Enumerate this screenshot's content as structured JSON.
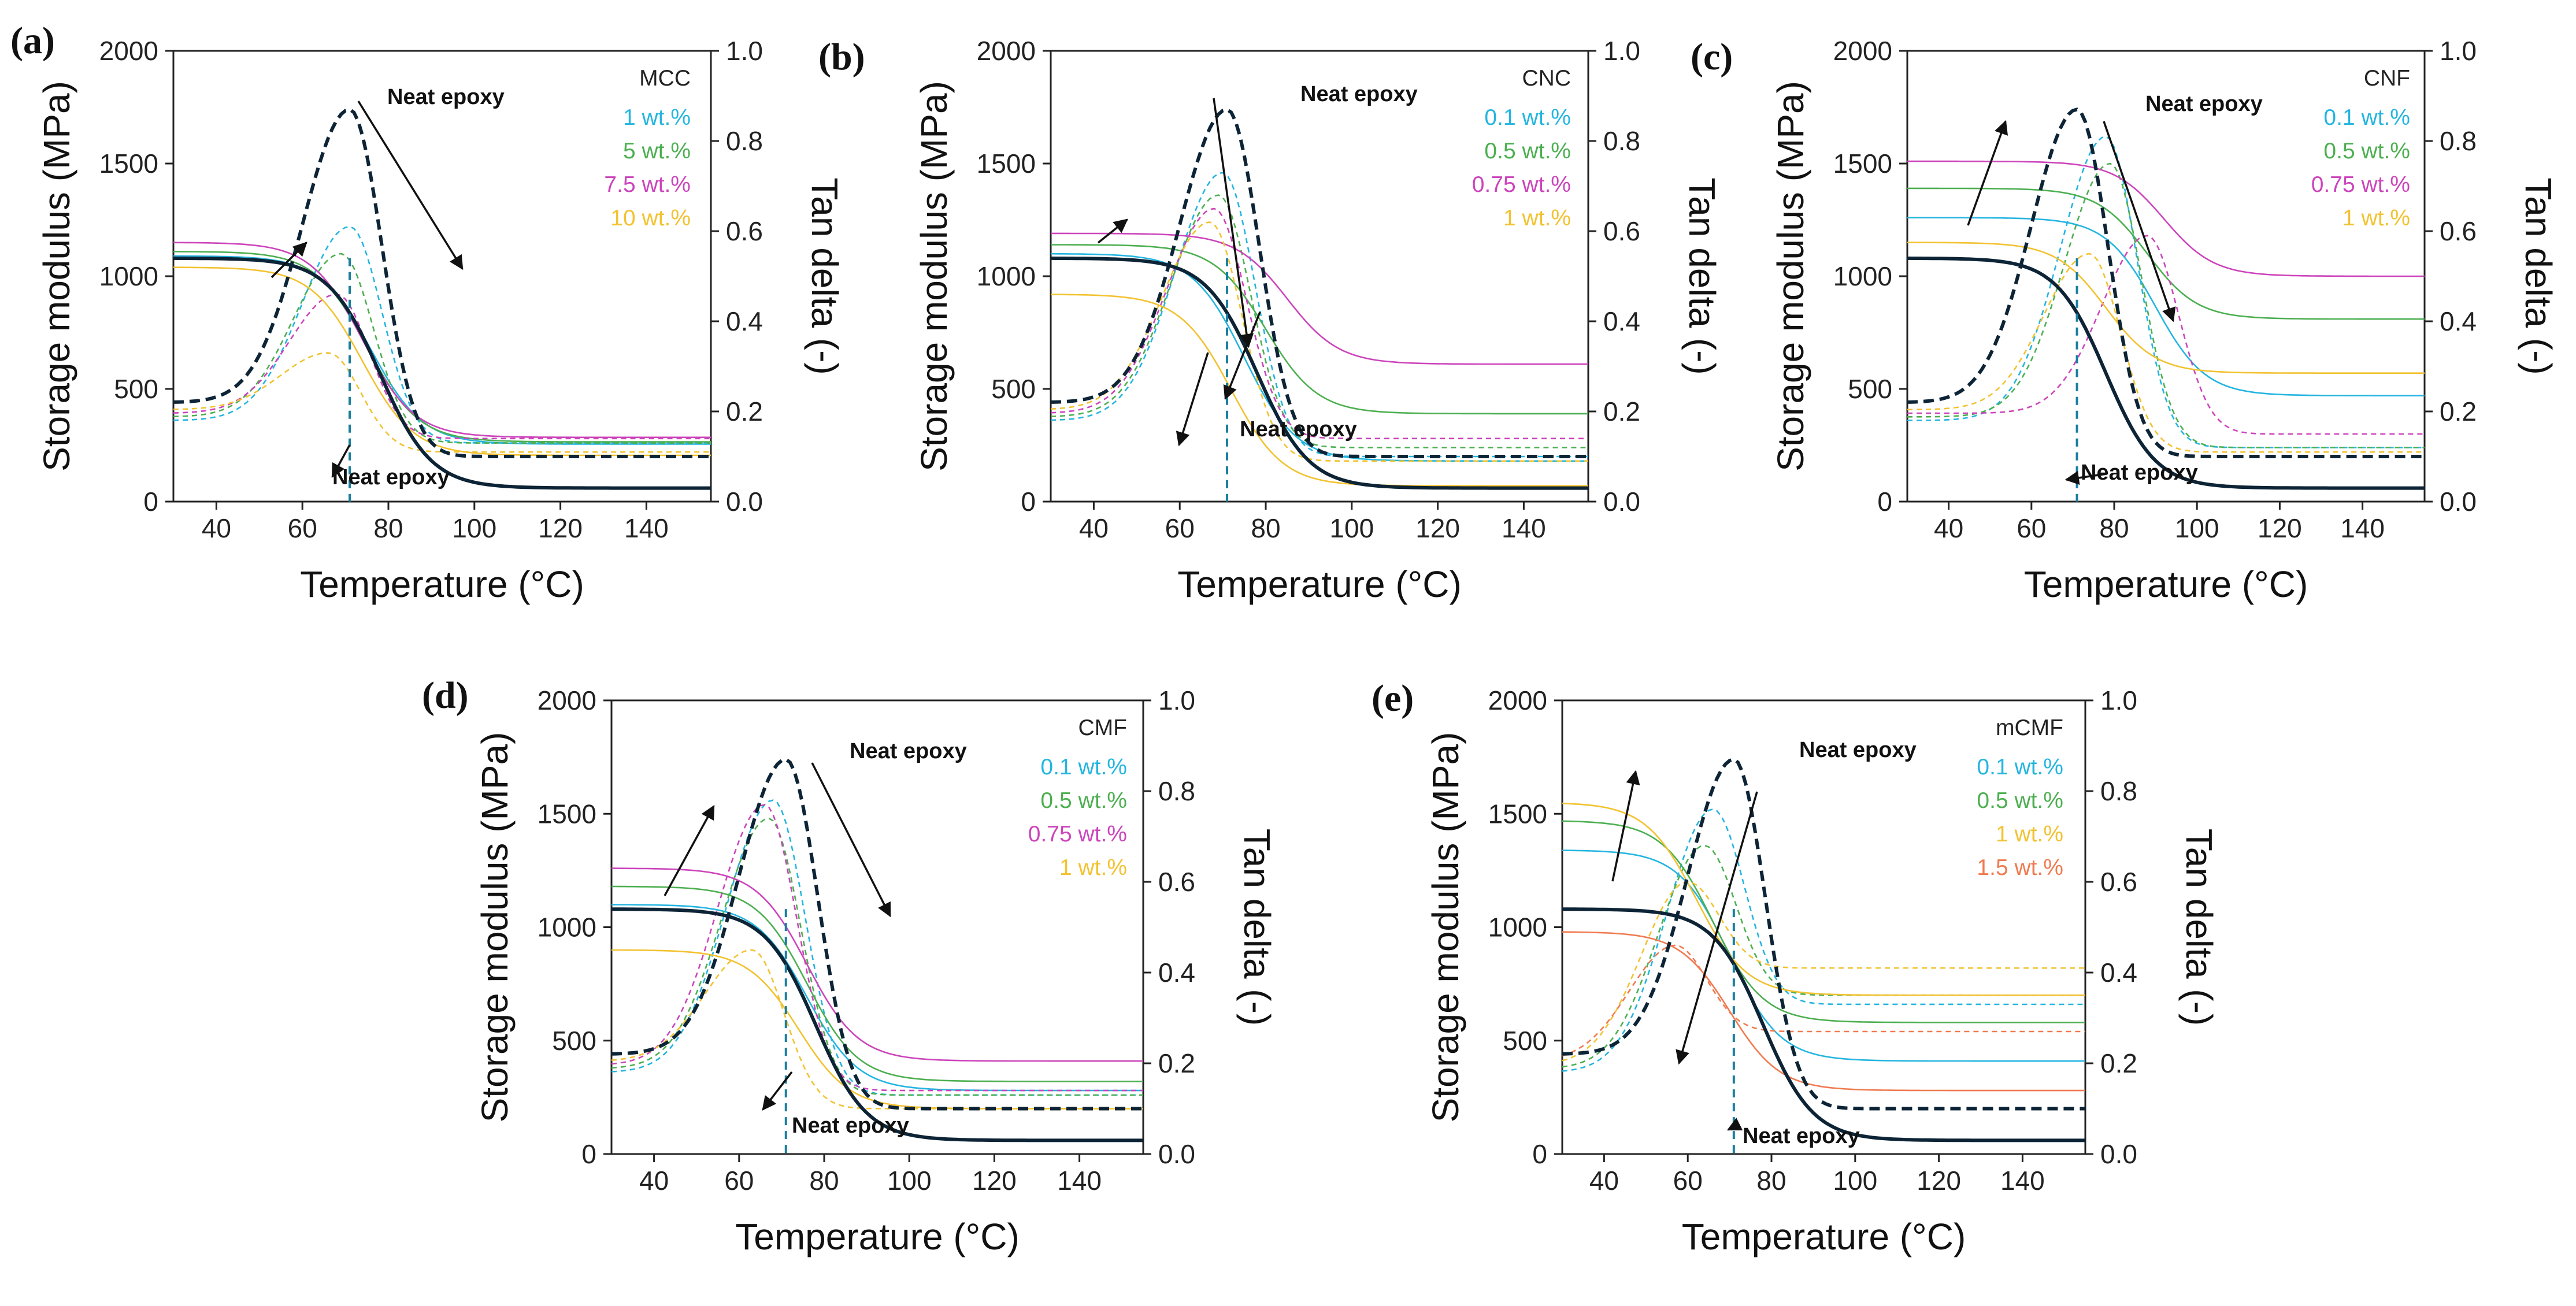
{
  "figure": {
    "y_label": "Storage modulus (MPa)",
    "y2_label": "Tan delta (-)",
    "x_label": "Temperature (°C)",
    "neat_label": "Neat epoxy"
  },
  "colors": {
    "neat": "#0d2436",
    "cyan": "#23b5e0",
    "green": "#4caf50",
    "magenta": "#cc44bb",
    "yellow": "#f2c230",
    "orange": "#f07a50"
  },
  "chart_data": [
    {
      "panel": "(a)",
      "type": "line",
      "material": "MCC",
      "xlim": [
        30,
        155
      ],
      "ylim": [
        0,
        2000
      ],
      "y2lim": [
        0,
        1.0
      ],
      "xticks": [
        "40",
        "60",
        "80",
        "100",
        "120",
        "140"
      ],
      "yticks": [
        "0",
        "500",
        "1000",
        "1500",
        "2000"
      ],
      "y2ticks": [
        "0.0",
        "0.2",
        "0.4",
        "0.6",
        "0.8",
        "1.0"
      ],
      "neat": {
        "peak_T": 71,
        "peak_tan": 0.87
      },
      "series": [
        {
          "name": "1 wt.%",
          "color": "cyan",
          "E_start": 1090,
          "E_end": 255,
          "T_trans": 76,
          "tan_peak_T": 71,
          "tan_peak": 0.61,
          "tan_end": 0.13
        },
        {
          "name": "5 wt.%",
          "color": "green",
          "E_start": 1110,
          "E_end": 265,
          "T_trans": 75,
          "tan_peak_T": 69,
          "tan_peak": 0.55,
          "tan_end": 0.13
        },
        {
          "name": "7.5 wt.%",
          "color": "magenta",
          "E_start": 1150,
          "E_end": 285,
          "T_trans": 74,
          "tan_peak_T": 68,
          "tan_peak": 0.46,
          "tan_end": 0.14
        },
        {
          "name": "10 wt.%",
          "color": "yellow",
          "E_start": 1040,
          "E_end": 205,
          "T_trans": 74,
          "tan_peak_T": 66,
          "tan_peak": 0.33,
          "tan_end": 0.11
        }
      ]
    },
    {
      "panel": "(b)",
      "type": "line",
      "material": "CNC",
      "xlim": [
        30,
        155
      ],
      "ylim": [
        0,
        2000
      ],
      "y2lim": [
        0,
        1.0
      ],
      "xticks": [
        "40",
        "60",
        "80",
        "100",
        "120",
        "140"
      ],
      "yticks": [
        "0",
        "500",
        "1000",
        "1500",
        "2000"
      ],
      "y2ticks": [
        "0.0",
        "0.2",
        "0.4",
        "0.6",
        "0.8",
        "1.0"
      ],
      "neat": {
        "peak_T": 71,
        "peak_tan": 0.87
      },
      "series": [
        {
          "name": "0.1 wt.%",
          "color": "cyan",
          "E_start": 1100,
          "E_end": 180,
          "T_trans": 75,
          "tan_peak_T": 70,
          "tan_peak": 0.73,
          "tan_end": 0.1
        },
        {
          "name": "0.5 wt.%",
          "color": "green",
          "E_start": 1140,
          "E_end": 390,
          "T_trans": 80,
          "tan_peak_T": 69,
          "tan_peak": 0.68,
          "tan_end": 0.12
        },
        {
          "name": "0.75 wt.%",
          "color": "magenta",
          "E_start": 1190,
          "E_end": 610,
          "T_trans": 85,
          "tan_peak_T": 68,
          "tan_peak": 0.65,
          "tan_end": 0.14
        },
        {
          "name": "1 wt.%",
          "color": "yellow",
          "E_start": 920,
          "E_end": 70,
          "T_trans": 72,
          "tan_peak_T": 67,
          "tan_peak": 0.62,
          "tan_end": 0.09
        }
      ]
    },
    {
      "panel": "(c)",
      "type": "line",
      "material": "CNF",
      "xlim": [
        30,
        155
      ],
      "ylim": [
        0,
        2000
      ],
      "y2lim": [
        0,
        1.0
      ],
      "xticks": [
        "40",
        "60",
        "80",
        "100",
        "120",
        "140"
      ],
      "yticks": [
        "0",
        "500",
        "1000",
        "1500",
        "2000"
      ],
      "y2ticks": [
        "0.0",
        "0.2",
        "0.4",
        "0.6",
        "0.8",
        "1.0"
      ],
      "neat": {
        "peak_T": 71,
        "peak_tan": 0.87
      },
      "series": [
        {
          "name": "0.1 wt.%",
          "color": "cyan",
          "E_start": 1260,
          "E_end": 470,
          "T_trans": 90,
          "tan_peak_T": 78,
          "tan_peak": 0.81,
          "tan_end": 0.12
        },
        {
          "name": "0.5 wt.%",
          "color": "green",
          "E_start": 1390,
          "E_end": 810,
          "T_trans": 88,
          "tan_peak_T": 79,
          "tan_peak": 0.75,
          "tan_end": 0.12
        },
        {
          "name": "0.75 wt.%",
          "color": "magenta",
          "E_start": 1510,
          "E_end": 1000,
          "T_trans": 92,
          "tan_peak_T": 88,
          "tan_peak": 0.59,
          "tan_end": 0.15
        },
        {
          "name": "1 wt.%",
          "color": "yellow",
          "E_start": 1150,
          "E_end": 570,
          "T_trans": 78,
          "tan_peak_T": 74,
          "tan_peak": 0.55,
          "tan_end": 0.11
        }
      ]
    },
    {
      "panel": "(d)",
      "type": "line",
      "material": "CMF",
      "xlim": [
        30,
        155
      ],
      "ylim": [
        0,
        2000
      ],
      "y2lim": [
        0,
        1.0
      ],
      "xticks": [
        "40",
        "60",
        "80",
        "100",
        "120",
        "140"
      ],
      "yticks": [
        "0",
        "500",
        "1000",
        "1500",
        "2000"
      ],
      "y2ticks": [
        "0.0",
        "0.2",
        "0.4",
        "0.6",
        "0.8",
        "1.0"
      ],
      "neat": {
        "peak_T": 71,
        "peak_tan": 0.87
      },
      "series": [
        {
          "name": "0.1 wt.%",
          "color": "cyan",
          "E_start": 1100,
          "E_end": 280,
          "T_trans": 76,
          "tan_peak_T": 68,
          "tan_peak": 0.78,
          "tan_end": 0.13
        },
        {
          "name": "0.5 wt.%",
          "color": "green",
          "E_start": 1180,
          "E_end": 320,
          "T_trans": 76,
          "tan_peak_T": 67,
          "tan_peak": 0.74,
          "tan_end": 0.13
        },
        {
          "name": "0.75 wt.%",
          "color": "magenta",
          "E_start": 1260,
          "E_end": 410,
          "T_trans": 76,
          "tan_peak_T": 66,
          "tan_peak": 0.77,
          "tan_end": 0.14
        },
        {
          "name": "1 wt.%",
          "color": "yellow",
          "E_start": 900,
          "E_end": 200,
          "T_trans": 74,
          "tan_peak_T": 63,
          "tan_peak": 0.45,
          "tan_end": 0.1
        }
      ]
    },
    {
      "panel": "(e)",
      "type": "line",
      "material": "mCMF",
      "xlim": [
        30,
        155
      ],
      "ylim": [
        0,
        2000
      ],
      "y2lim": [
        0,
        1.0
      ],
      "xticks": [
        "40",
        "60",
        "80",
        "100",
        "120",
        "140"
      ],
      "yticks": [
        "0",
        "500",
        "1000",
        "1500",
        "2000"
      ],
      "y2ticks": [
        "0.0",
        "0.2",
        "0.4",
        "0.6",
        "0.8",
        "1.0"
      ],
      "neat": {
        "peak_T": 71,
        "peak_tan": 0.87
      },
      "series": [
        {
          "name": "0.1 wt.%",
          "color": "cyan",
          "E_start": 1340,
          "E_end": 410,
          "T_trans": 70,
          "tan_peak_T": 66,
          "tan_peak": 0.76,
          "tan_end": 0.33
        },
        {
          "name": "0.5 wt.%",
          "color": "green",
          "E_start": 1470,
          "E_end": 580,
          "T_trans": 66,
          "tan_peak_T": 64,
          "tan_peak": 0.68,
          "tan_end": 0.35
        },
        {
          "name": "1 wt.%",
          "color": "yellow",
          "E_start": 1550,
          "E_end": 700,
          "T_trans": 62,
          "tan_peak_T": 60,
          "tan_peak": 0.6,
          "tan_end": 0.41
        },
        {
          "name": "1.5 wt.%",
          "color": "orange",
          "E_start": 980,
          "E_end": 280,
          "T_trans": 70,
          "tan_peak_T": 57,
          "tan_peak": 0.46,
          "tan_end": 0.27
        }
      ]
    }
  ]
}
